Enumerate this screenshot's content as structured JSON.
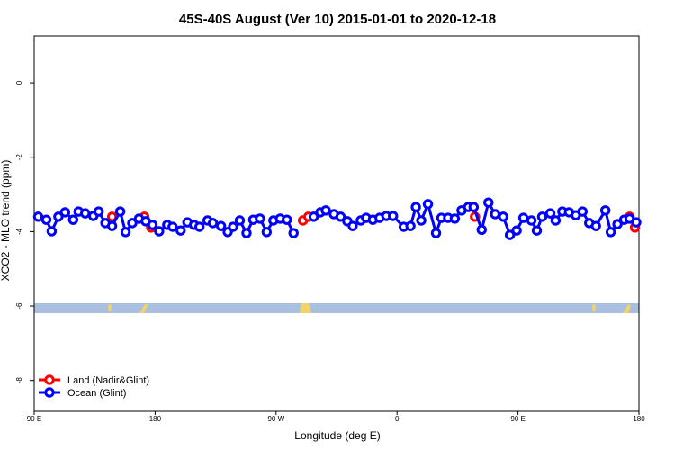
{
  "chart_data": {
    "type": "line",
    "title": "45S-40S August (Ver 10)   2015-01-01 to 2020-12-18",
    "x_label": "Longitude (deg E)",
    "y_label": "XCO2 - MLO trend (ppm)",
    "xlim": [
      90,
      540
    ],
    "ylim": [
      -8.83,
      1.26
    ],
    "xticks": [
      {
        "value": 90,
        "label": "90 E"
      },
      {
        "value": 180,
        "label": "180"
      },
      {
        "value": 270,
        "label": "90 W"
      },
      {
        "value": 360,
        "label": "0"
      },
      {
        "value": 450,
        "label": "90 E"
      },
      {
        "value": 540,
        "label": "180"
      }
    ],
    "yticks": [
      0,
      -2,
      -4,
      -6,
      -8
    ],
    "legend_position": "bottom-left",
    "series": [
      {
        "name": "Land (Nadir&Glint)",
        "color": "#ff0000",
        "x": [
          148,
          172,
          177,
          290,
          294,
          418,
          533,
          537
        ],
        "values": [
          -3.6,
          -3.6,
          -3.89,
          -3.7,
          -3.6,
          -3.6,
          -3.6,
          -3.89
        ]
      },
      {
        "name": "Ocean (Glint)",
        "color": "#0000ff",
        "x": [
          93,
          99,
          103,
          108,
          113,
          119,
          123,
          128,
          134,
          138,
          143,
          148,
          154,
          158,
          163,
          168,
          173,
          178,
          183,
          189,
          193,
          199,
          204,
          209,
          213,
          219,
          223,
          229,
          234,
          238,
          243,
          248,
          253,
          258,
          263,
          268,
          273,
          278,
          283,
          298,
          303,
          307,
          313,
          318,
          323,
          327,
          333,
          337,
          342,
          347,
          352,
          357,
          365,
          370,
          374,
          378,
          383,
          389,
          393,
          398,
          403,
          408,
          413,
          417,
          423,
          428,
          433,
          439,
          444,
          449,
          454,
          460,
          464,
          468,
          474,
          478,
          483,
          488,
          493,
          498,
          503,
          508,
          515,
          519,
          524,
          529,
          533,
          538
        ],
        "values": [
          -3.6,
          -3.68,
          -3.99,
          -3.6,
          -3.48,
          -3.68,
          -3.46,
          -3.51,
          -3.58,
          -3.46,
          -3.77,
          -3.85,
          -3.46,
          -4.01,
          -3.77,
          -3.65,
          -3.72,
          -3.82,
          -3.99,
          -3.82,
          -3.87,
          -3.97,
          -3.75,
          -3.82,
          -3.87,
          -3.7,
          -3.77,
          -3.85,
          -4.01,
          -3.87,
          -3.7,
          -4.04,
          -3.68,
          -3.65,
          -4.01,
          -3.7,
          -3.65,
          -3.68,
          -4.04,
          -3.6,
          -3.48,
          -3.43,
          -3.53,
          -3.6,
          -3.72,
          -3.85,
          -3.7,
          -3.63,
          -3.68,
          -3.63,
          -3.58,
          -3.58,
          -3.87,
          -3.85,
          -3.34,
          -3.7,
          -3.26,
          -4.04,
          -3.63,
          -3.63,
          -3.65,
          -3.43,
          -3.34,
          -3.34,
          -3.95,
          -3.22,
          -3.53,
          -3.6,
          -4.09,
          -3.97,
          -3.63,
          -3.7,
          -3.97,
          -3.6,
          -3.51,
          -3.7,
          -3.46,
          -3.48,
          -3.56,
          -3.46,
          -3.77,
          -3.85,
          -3.43,
          -4.01,
          -3.8,
          -3.68,
          -3.65,
          -3.75
        ]
      }
    ]
  }
}
